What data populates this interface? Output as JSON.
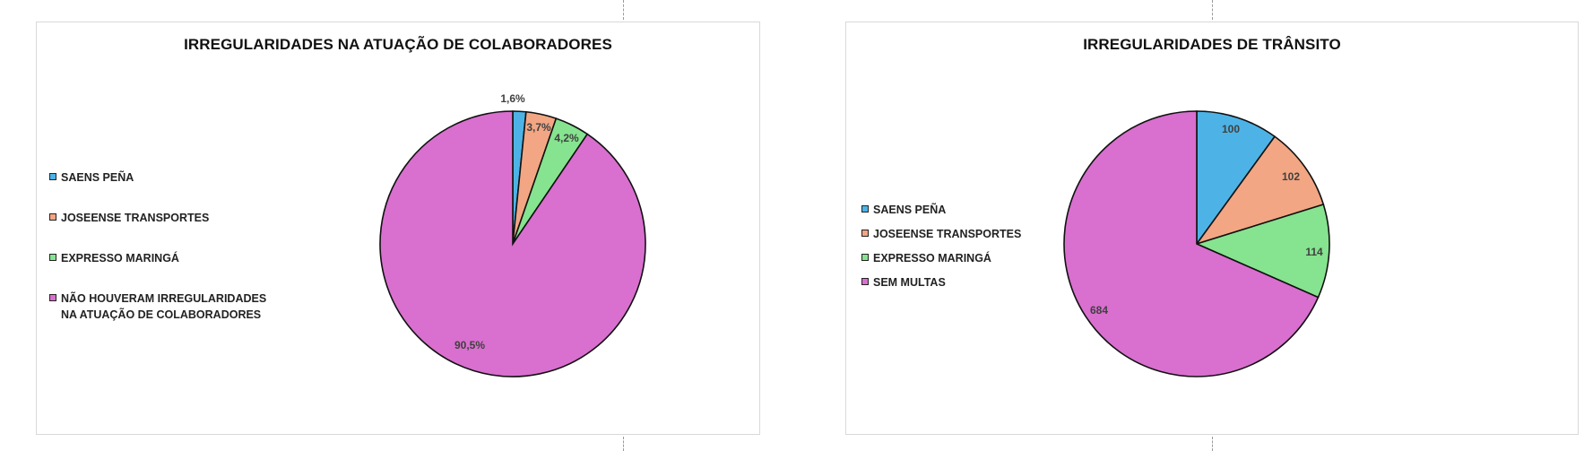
{
  "chart_data": [
    {
      "type": "pie",
      "title": "IRREGULARIDADES NA ATUAÇÃO DE COLABORADORES",
      "categories": [
        "SAENS PEÑA",
        "JOSEENSE TRANSPORTES",
        "EXPRESSO MARINGÁ",
        "NÃO HOUVERAM IRREGULARIDADES NA ATUAÇÃO DE COLABORADORES"
      ],
      "values": [
        1.6,
        3.7,
        4.2,
        90.5
      ],
      "data_labels": [
        "1,6%",
        "3,7%",
        "4,2%",
        "90,5%"
      ],
      "colors": [
        "#4db3e6",
        "#f2a683",
        "#86e38f",
        "#d96fcf"
      ],
      "legend_position": "left"
    },
    {
      "type": "pie",
      "title": "IRREGULARIDADES DE TRÂNSITO",
      "categories": [
        "SAENS PEÑA",
        "JOSEENSE TRANSPORTES",
        "EXPRESSO MARINGÁ",
        "SEM MULTAS"
      ],
      "values": [
        100,
        102,
        114,
        684
      ],
      "data_labels": [
        "100",
        "102",
        "114",
        "684"
      ],
      "colors": [
        "#4db3e6",
        "#f2a683",
        "#86e38f",
        "#d96fcf"
      ],
      "legend_position": "left"
    }
  ]
}
